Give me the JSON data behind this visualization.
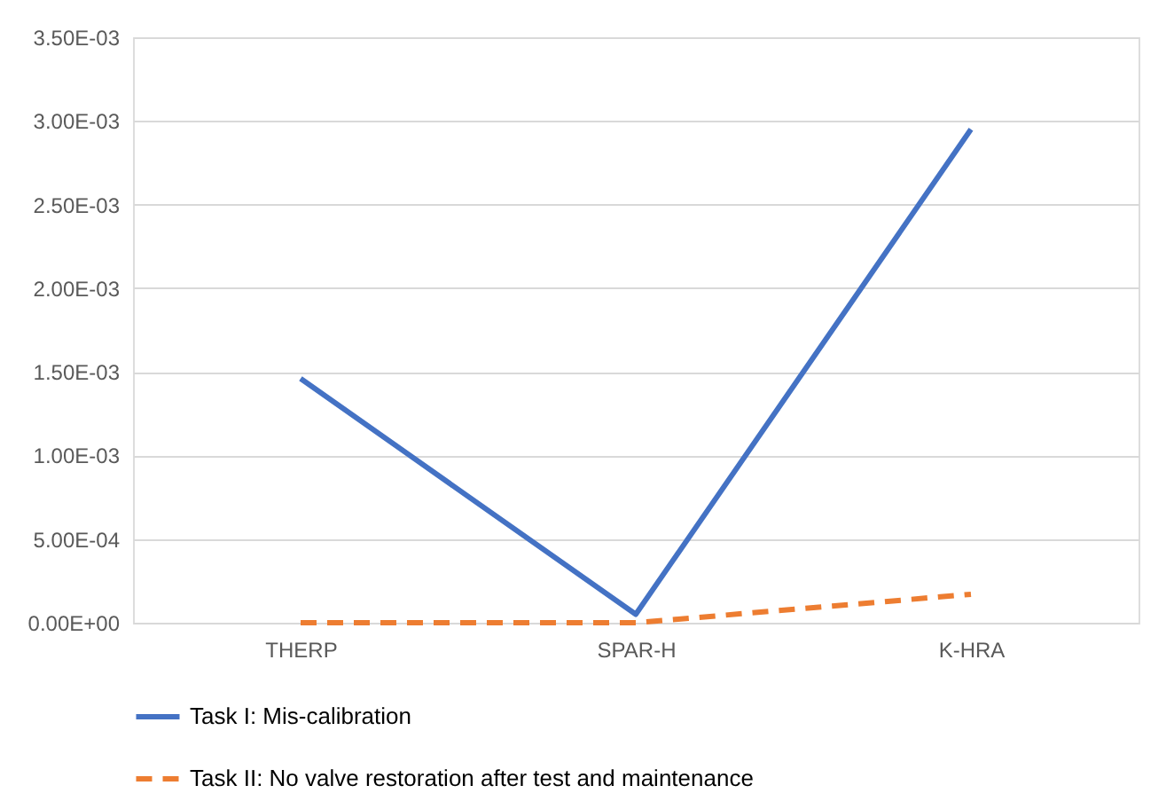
{
  "chart_data": {
    "type": "line",
    "categories": [
      "THERP",
      "SPAR-H",
      "K-HRA"
    ],
    "series": [
      {
        "name": "Task I: Mis-calibration",
        "color": "#4472c4",
        "line_style": "solid",
        "values": [
          0.00146,
          5e-05,
          0.00295
        ]
      },
      {
        "name": "Task II: No valve restoration after test and maintenance",
        "color": "#ed7d31",
        "line_style": "dashed",
        "values": [
          0,
          0,
          0.00017
        ]
      }
    ],
    "ylim": [
      0,
      0.0035
    ],
    "yticks": [
      {
        "value": 0,
        "label": "0.00E+00"
      },
      {
        "value": 0.0005,
        "label": "5.00E-04"
      },
      {
        "value": 0.001,
        "label": "1.00E-03"
      },
      {
        "value": 0.0015,
        "label": "1.50E-03"
      },
      {
        "value": 0.002,
        "label": "2.00E-03"
      },
      {
        "value": 0.0025,
        "label": "2.50E-03"
      },
      {
        "value": 0.003,
        "label": "3.00E-03"
      },
      {
        "value": 0.0035,
        "label": "3.50E-03"
      }
    ],
    "grid": "y",
    "legend": "bottom",
    "marker": "none"
  }
}
